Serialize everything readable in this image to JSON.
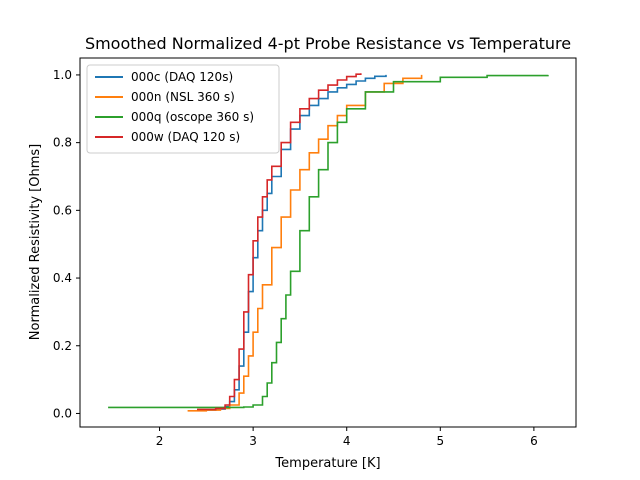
{
  "chart_data": {
    "type": "line",
    "title": "Smoothed Normalized 4-pt Probe Resistance vs Temperature",
    "xlabel": "Temperature [K]",
    "ylabel": "Normalized Resistivity [Ohms]",
    "xlim": [
      1.15,
      6.45
    ],
    "ylim": [
      -0.04,
      1.05
    ],
    "xticks": [
      2,
      3,
      4,
      5,
      6
    ],
    "yticks": [
      0.0,
      0.2,
      0.4,
      0.6,
      0.8,
      1.0
    ],
    "xtick_labels": [
      "2",
      "3",
      "4",
      "5",
      "6"
    ],
    "ytick_labels": [
      "0.0",
      "0.2",
      "0.4",
      "0.6",
      "0.8",
      "1.0"
    ],
    "grid": false,
    "legend_position": "top-left",
    "series": [
      {
        "name": "000c (DAQ 120s)",
        "color": "#1f77b4",
        "x": [
          2.45,
          2.6,
          2.7,
          2.75,
          2.8,
          2.85,
          2.9,
          2.95,
          3.0,
          3.05,
          3.1,
          3.15,
          3.2,
          3.3,
          3.4,
          3.5,
          3.6,
          3.7,
          3.8,
          3.9,
          4.0,
          4.1,
          4.2,
          4.3,
          4.42
        ],
        "y": [
          0.01,
          0.013,
          0.02,
          0.035,
          0.07,
          0.14,
          0.24,
          0.36,
          0.46,
          0.54,
          0.6,
          0.65,
          0.7,
          0.78,
          0.84,
          0.88,
          0.91,
          0.93,
          0.95,
          0.962,
          0.972,
          0.982,
          0.99,
          0.996,
          1.0
        ]
      },
      {
        "name": "000n (NSL 360 s)",
        "color": "#ff7f0e",
        "x": [
          2.3,
          2.5,
          2.65,
          2.75,
          2.85,
          2.9,
          2.95,
          3.0,
          3.05,
          3.1,
          3.2,
          3.3,
          3.4,
          3.5,
          3.6,
          3.7,
          3.8,
          3.9,
          4.0,
          4.2,
          4.4,
          4.6,
          4.8
        ],
        "y": [
          0.008,
          0.01,
          0.015,
          0.025,
          0.06,
          0.11,
          0.17,
          0.24,
          0.31,
          0.38,
          0.49,
          0.58,
          0.66,
          0.72,
          0.77,
          0.81,
          0.85,
          0.88,
          0.91,
          0.95,
          0.975,
          0.99,
          1.0
        ]
      },
      {
        "name": "000q (oscope 360 s)",
        "color": "#2ca02c",
        "x": [
          1.45,
          2.0,
          2.5,
          2.9,
          3.0,
          3.1,
          3.15,
          3.2,
          3.25,
          3.3,
          3.35,
          3.4,
          3.5,
          3.6,
          3.7,
          3.8,
          3.9,
          4.0,
          4.2,
          4.5,
          5.0,
          5.5,
          6.15
        ],
        "y": [
          0.018,
          0.018,
          0.018,
          0.019,
          0.025,
          0.05,
          0.09,
          0.15,
          0.21,
          0.28,
          0.35,
          0.42,
          0.54,
          0.64,
          0.72,
          0.8,
          0.86,
          0.9,
          0.95,
          0.98,
          0.993,
          0.998,
          1.0
        ]
      },
      {
        "name": "000w (DAQ 120 s)",
        "color": "#d62728",
        "x": [
          2.4,
          2.6,
          2.7,
          2.75,
          2.8,
          2.85,
          2.9,
          2.95,
          3.0,
          3.05,
          3.1,
          3.15,
          3.2,
          3.3,
          3.4,
          3.5,
          3.6,
          3.7,
          3.8,
          3.9,
          4.0,
          4.1,
          4.15
        ],
        "y": [
          0.012,
          0.015,
          0.025,
          0.05,
          0.1,
          0.19,
          0.3,
          0.41,
          0.51,
          0.58,
          0.64,
          0.69,
          0.73,
          0.8,
          0.86,
          0.9,
          0.93,
          0.955,
          0.97,
          0.985,
          0.995,
          1.002,
          1.005
        ]
      }
    ]
  }
}
